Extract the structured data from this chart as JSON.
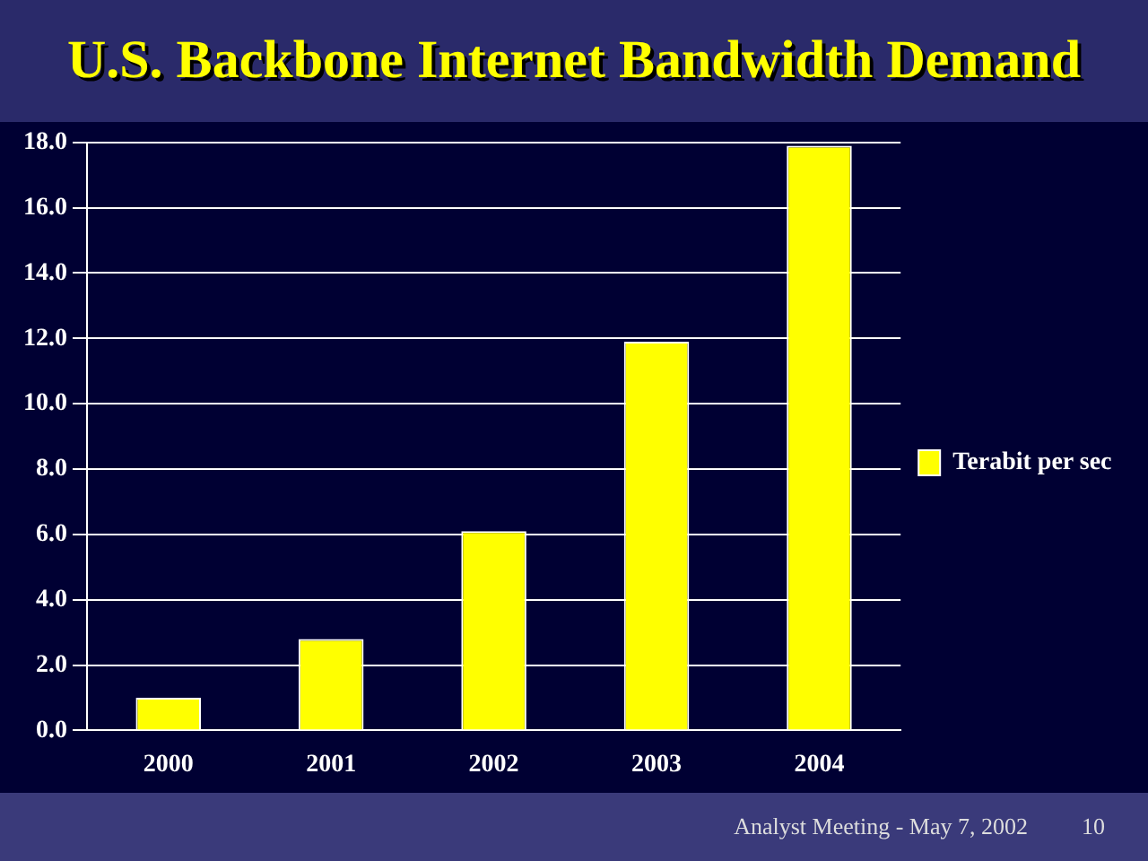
{
  "chart_data": {
    "type": "bar",
    "title": "U.S. Backbone Internet Bandwidth Demand",
    "categories": [
      "2000",
      "2001",
      "2002",
      "2003",
      "2004"
    ],
    "series": [
      {
        "name": "Terabit per sec",
        "color": "#ffff00",
        "values": [
          1.0,
          2.8,
          6.1,
          11.9,
          17.9
        ]
      }
    ],
    "ylim": [
      0,
      18
    ],
    "yticks": [
      {
        "value": 0,
        "label": "0.0"
      },
      {
        "value": 2,
        "label": "2.0"
      },
      {
        "value": 4,
        "label": "4.0"
      },
      {
        "value": 6,
        "label": "6.0"
      },
      {
        "value": 8,
        "label": "8.0"
      },
      {
        "value": 10,
        "label": "10.0"
      },
      {
        "value": 12,
        "label": "12.0"
      },
      {
        "value": 14,
        "label": "14.0"
      },
      {
        "value": 16,
        "label": "16.0"
      },
      {
        "value": 18,
        "label": "18.0"
      }
    ],
    "grid": "y",
    "legend": "right",
    "annotations": [
      "Analyst Meeting - May 7, 2002",
      "10"
    ]
  }
}
